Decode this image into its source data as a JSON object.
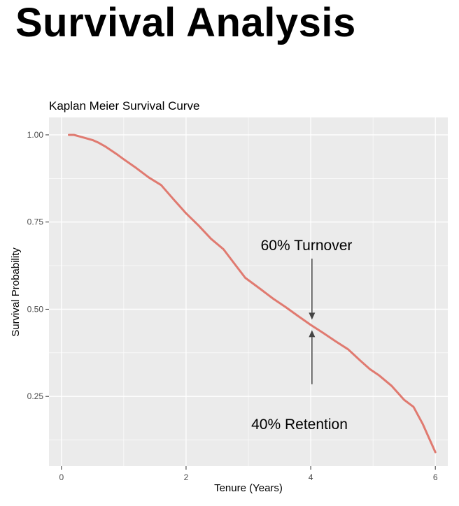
{
  "slide": {
    "title": "Survival Analysis"
  },
  "chart_data": {
    "type": "line",
    "title": "Kaplan Meier Survival Curve",
    "xlabel": "Tenure (Years)",
    "ylabel": "Survival Probability",
    "xlim": [
      -0.2,
      6.2
    ],
    "ylim": [
      0.05,
      1.05
    ],
    "x_ticks": [
      0,
      2,
      4,
      6
    ],
    "y_ticks": [
      0.25,
      0.5,
      0.75,
      1.0
    ],
    "x_tick_labels": [
      "0",
      "2",
      "4",
      "6"
    ],
    "y_tick_labels": [
      "0.25",
      "0.50",
      "0.75",
      "1.00"
    ],
    "grid": true,
    "series": [
      {
        "color": "#e07a70",
        "x": [
          0.12,
          0.2,
          0.3,
          0.4,
          0.5,
          0.6,
          0.7,
          0.8,
          0.9,
          1.0,
          1.2,
          1.4,
          1.6,
          1.8,
          2.0,
          2.2,
          2.4,
          2.6,
          2.8,
          2.95,
          3.2,
          3.4,
          3.6,
          3.8,
          4.0,
          4.2,
          4.4,
          4.6,
          4.8,
          4.95,
          5.1,
          5.3,
          5.5,
          5.65,
          5.8,
          5.9,
          6.0
        ],
        "y": [
          1.0,
          1.0,
          0.995,
          0.99,
          0.985,
          0.977,
          0.967,
          0.955,
          0.943,
          0.93,
          0.905,
          0.878,
          0.856,
          0.815,
          0.775,
          0.74,
          0.702,
          0.672,
          0.625,
          0.59,
          0.557,
          0.53,
          0.506,
          0.48,
          0.455,
          0.432,
          0.408,
          0.385,
          0.352,
          0.328,
          0.31,
          0.28,
          0.24,
          0.22,
          0.17,
          0.13,
          0.09
        ]
      }
    ],
    "annotations": [
      {
        "text": "60% Turnover",
        "arrow_from": [
          4.02,
          0.645
        ],
        "arrow_to": [
          4.02,
          0.47
        ]
      },
      {
        "text": "40% Retention",
        "arrow_from": [
          4.02,
          0.285
        ],
        "arrow_to": [
          4.02,
          0.44
        ]
      }
    ],
    "colors": {
      "panel": "#ebebeb",
      "grid": "#ffffff",
      "line": "#e07a70",
      "arrow": "#444444",
      "axis_text": "#4d4d4d",
      "label_text": "#000000"
    }
  }
}
